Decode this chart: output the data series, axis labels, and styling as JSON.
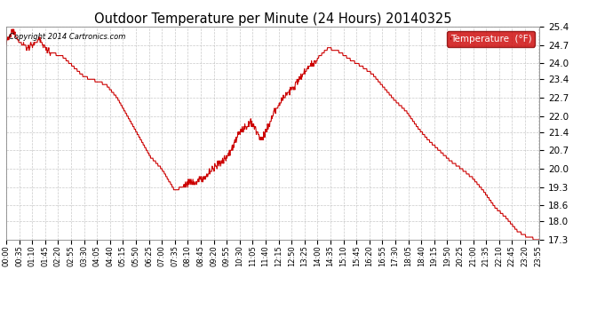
{
  "title": "Outdoor Temperature per Minute (24 Hours) 20140325",
  "copyright_text": "Copyright 2014 Cartronics.com",
  "legend_label": "Temperature  (°F)",
  "legend_bg": "#cc0000",
  "line_color": "#cc0000",
  "background_color": "#ffffff",
  "grid_color": "#bbbbbb",
  "ylim": [
    17.3,
    25.4
  ],
  "yticks": [
    17.3,
    18.0,
    18.6,
    19.3,
    20.0,
    20.7,
    21.4,
    22.0,
    22.7,
    23.4,
    24.0,
    24.7,
    25.4
  ],
  "xtick_labels": [
    "00:00",
    "00:35",
    "01:10",
    "01:45",
    "02:20",
    "02:55",
    "03:30",
    "04:05",
    "04:40",
    "05:15",
    "05:50",
    "06:25",
    "07:00",
    "07:35",
    "08:10",
    "08:45",
    "09:20",
    "09:55",
    "10:30",
    "11:05",
    "11:40",
    "12:15",
    "12:50",
    "13:25",
    "14:00",
    "14:35",
    "15:10",
    "15:45",
    "16:20",
    "16:55",
    "17:30",
    "18:05",
    "18:40",
    "19:15",
    "19:50",
    "20:25",
    "21:00",
    "21:35",
    "22:10",
    "22:45",
    "23:20",
    "23:55"
  ]
}
